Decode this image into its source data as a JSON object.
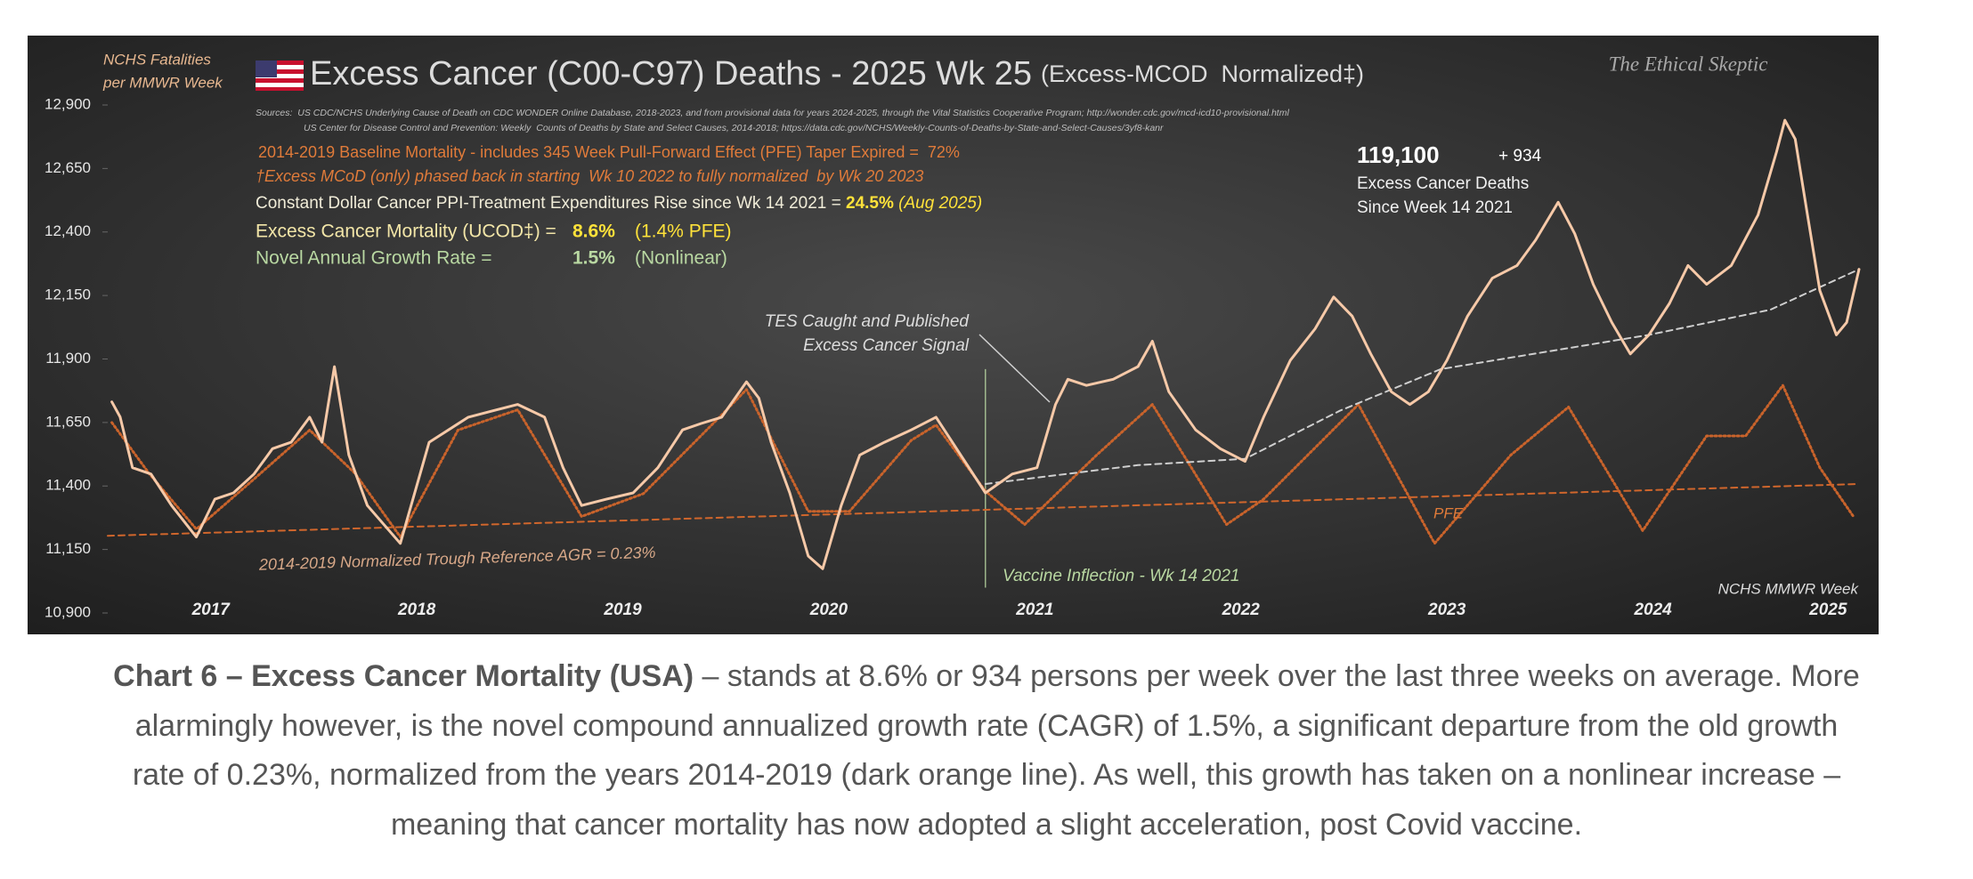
{
  "chart_data": {
    "type": "line",
    "title": "Excess Cancer (C00-C97) Deaths - 2025 Wk 25",
    "subtitle": "(Excess-MCOD  Normalized‡)",
    "ylabel": [
      "NCHS Fatalities",
      "per MMWR Week"
    ],
    "xlabel": "NCHS MMWR Week",
    "watermark": "The Ethical Skeptic",
    "sources": [
      "Sources:  US CDC/NCHS Underlying Cause of Death on CDC WONDER Online Database, 2018-2023, and from provisional data for years 2024-2025, through the Vital Statistics Cooperative Program; http://wonder.cdc.gov/mcd-icd10-provisional.html",
      "US Center for Disease Control and Prevention: Weekly  Counts of Deaths by State and Select Causes, 2014-2018; https://data.cdc.gov/NCHS/Weekly-Counts-of-Deaths-by-State-and-Select-Causes/3yf8-kanr"
    ],
    "notes": {
      "baseline": "2014-2019 Baseline Mortality - includes 345 Week Pull-Forward Effect (PFE) Taper Expired =  72%",
      "mcod": "†Excess MCoD (only) phased back in starting  Wk 10 2022 to fully normalized  by Wk 20 2023",
      "ppi": [
        "Constant Dollar Cancer PPI-Treatment Expenditures Rise since Wk 14 2021 = ",
        "24.5%",
        " (Aug 2025)"
      ],
      "mortality": [
        "Excess Cancer Mortality (UCOD‡) = ",
        "8.6%",
        "(1.4% PFE)"
      ],
      "growth": [
        "Novel Annual Growth Rate = ",
        "1.5%",
        "(Nonlinear)"
      ]
    },
    "total": {
      "value": "119,100",
      "delta": "+ 934",
      "lines": [
        "Excess Cancer Deaths",
        "Since Week 14 2021"
      ]
    },
    "annotations": {
      "signal": [
        "TES Caught and Published",
        "Excess Cancer Signal"
      ],
      "vaccine": "Vaccine Inflection - Wk 14 2021",
      "pfe": "PFE",
      "trough": "2014-2019 Normalized Trough Reference AGR = 0.23%"
    },
    "vline_x": 2021.26,
    "xlim": [
      2017,
      2025.5
    ],
    "xticks": [
      {
        "value": 2017.5,
        "label": "2017"
      },
      {
        "value": 2018.5,
        "label": "2018"
      },
      {
        "value": 2019.5,
        "label": "2019"
      },
      {
        "value": 2020.5,
        "label": "2020"
      },
      {
        "value": 2021.5,
        "label": "2021"
      },
      {
        "value": 2022.5,
        "label": "2022"
      },
      {
        "value": 2023.5,
        "label": "2023"
      },
      {
        "value": 2024.5,
        "label": "2024"
      },
      {
        "value": 2025.35,
        "label": "2025"
      }
    ],
    "ylim": [
      10900,
      12900
    ],
    "yticks": [
      {
        "value": 10900,
        "label": "10,900"
      },
      {
        "value": 11150,
        "label": "11,150"
      },
      {
        "value": 11400,
        "label": "11,400"
      },
      {
        "value": 11650,
        "label": "11,650"
      },
      {
        "value": 11900,
        "label": "11,900"
      },
      {
        "value": 12150,
        "label": "12,150"
      },
      {
        "value": 12400,
        "label": "12,400"
      },
      {
        "value": 12650,
        "label": "12,650"
      },
      {
        "value": 12900,
        "label": "12,900"
      }
    ],
    "series": [
      {
        "color": "#d0662c",
        "style": "dashed",
        "width": 2,
        "x": [
          2017.0,
          2025.5
        ],
        "values": [
          11204,
          11408
        ]
      },
      {
        "color": "#c9632b",
        "style": "dotted",
        "width": 3,
        "x": [
          2017.02,
          2017.2,
          2017.43,
          2017.7,
          2017.98,
          2018.2,
          2018.42,
          2018.7,
          2018.99,
          2019.3,
          2019.6,
          2019.98,
          2020.1,
          2020.4,
          2020.6,
          2020.9,
          2021.02,
          2021.26,
          2021.45,
          2021.8,
          2022.07,
          2022.43,
          2022.61,
          2023.07,
          2023.44,
          2023.81,
          2024.09,
          2024.45,
          2024.76,
          2024.95,
          2025.13,
          2025.31,
          2025.47
        ],
        "values": [
          11650,
          11450,
          11230,
          11420,
          11620,
          11450,
          11200,
          11620,
          11700,
          11280,
          11370,
          11680,
          11780,
          11300,
          11300,
          11580,
          11640,
          11380,
          11248,
          11522,
          11721,
          11248,
          11348,
          11721,
          11174,
          11522,
          11711,
          11224,
          11597,
          11597,
          11796,
          11472,
          11283
        ]
      },
      {
        "color": "#cfcfcf",
        "style": "dashed",
        "width": 2,
        "x": [
          2021.26,
          2022.0,
          2022.52,
          2022.98,
          2023.47,
          2024.48,
          2025.07,
          2025.5
        ],
        "values": [
          11408,
          11482,
          11507,
          11696,
          11860,
          11995,
          12094,
          12253
        ]
      },
      {
        "color": "#f6c9a8",
        "style": "solid",
        "width": 3,
        "x": [
          2017.02,
          2017.06,
          2017.12,
          2017.21,
          2017.31,
          2017.43,
          2017.52,
          2017.61,
          2017.71,
          2017.8,
          2017.89,
          2017.98,
          2018.04,
          2018.1,
          2018.17,
          2018.26,
          2018.42,
          2018.56,
          2018.75,
          2018.87,
          2018.99,
          2019.12,
          2019.21,
          2019.3,
          2019.42,
          2019.55,
          2019.67,
          2019.79,
          2019.88,
          2019.98,
          2020.1,
          2020.16,
          2020.22,
          2020.31,
          2020.4,
          2020.47,
          2020.56,
          2020.65,
          2020.77,
          2020.9,
          2021.02,
          2021.14,
          2021.26,
          2021.39,
          2021.51,
          2021.6,
          2021.66,
          2021.75,
          2021.88,
          2022.0,
          2022.07,
          2022.15,
          2022.28,
          2022.4,
          2022.52,
          2022.61,
          2022.74,
          2022.86,
          2022.95,
          2023.04,
          2023.13,
          2023.23,
          2023.32,
          2023.41,
          2023.5,
          2023.6,
          2023.72,
          2023.84,
          2023.93,
          2024.04,
          2024.12,
          2024.21,
          2024.3,
          2024.39,
          2024.48,
          2024.58,
          2024.67,
          2024.76,
          2024.88,
          2025.01,
          2025.1,
          2025.14,
          2025.19,
          2025.25,
          2025.31,
          2025.39,
          2025.44,
          2025.5
        ],
        "values": [
          11731,
          11672,
          11472,
          11447,
          11323,
          11199,
          11348,
          11373,
          11447,
          11547,
          11572,
          11671,
          11572,
          11870,
          11522,
          11323,
          11174,
          11572,
          11671,
          11696,
          11721,
          11671,
          11472,
          11323,
          11348,
          11373,
          11472,
          11621,
          11646,
          11671,
          11810,
          11746,
          11572,
          11373,
          11124,
          11074,
          11323,
          11522,
          11572,
          11621,
          11671,
          11522,
          11373,
          11447,
          11472,
          11721,
          11820,
          11796,
          11820,
          11870,
          11970,
          11771,
          11621,
          11547,
          11497,
          11671,
          11895,
          12019,
          12144,
          12069,
          11920,
          11771,
          11721,
          11771,
          11895,
          12069,
          12218,
          12268,
          12368,
          12517,
          12393,
          12194,
          12044,
          11920,
          11995,
          12119,
          12268,
          12194,
          12268,
          12467,
          12716,
          12840,
          12766,
          12467,
          12169,
          11995,
          12044,
          12253
        ]
      }
    ],
    "caption": {
      "bold": "Chart 6 – Excess Cancer Mortality (USA)",
      "lines": [
        " – stands at 8.6% or 934 persons per week over the last three weeks on average. More",
        "alarmingly however, is the novel compound annualized growth rate (CAGR) of 1.5%, a significant departure from the old growth",
        "rate of 0.23%, normalized from the years 2014-2019 (dark orange line). As well, this growth has taken on a nonlinear increase –",
        "meaning that cancer mortality has now adopted a slight acceleration, post Covid vaccine."
      ]
    }
  }
}
